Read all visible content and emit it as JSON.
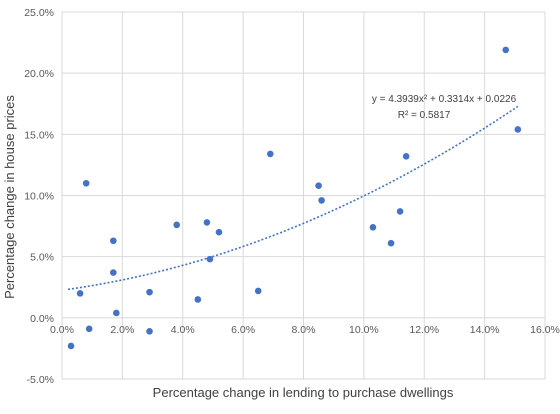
{
  "chart_data": {
    "type": "scatter",
    "xlabel": "Percentage change in lending to purchase dwellings",
    "ylabel": "Percentage change in house prices",
    "xlim": [
      0,
      0.16
    ],
    "ylim": [
      -0.05,
      0.25
    ],
    "x_ticks": [
      0,
      0.02,
      0.04,
      0.06,
      0.08,
      0.1,
      0.12,
      0.14,
      0.16
    ],
    "y_ticks": [
      -0.05,
      0,
      0.05,
      0.1,
      0.15,
      0.2,
      0.25
    ],
    "x_tick_labels": [
      "0.0%",
      "2.0%",
      "4.0%",
      "6.0%",
      "8.0%",
      "10.0%",
      "12.0%",
      "14.0%",
      "16.0%"
    ],
    "y_tick_labels": [
      "-5.0%",
      "0.0%",
      "5.0%",
      "10.0%",
      "15.0%",
      "20.0%",
      "25.0%"
    ],
    "grid": true,
    "marker_color": "#4472c4",
    "trendline_color": "#4472c4",
    "points": [
      {
        "x": 0.003,
        "y": -0.023
      },
      {
        "x": 0.006,
        "y": 0.02
      },
      {
        "x": 0.008,
        "y": 0.11
      },
      {
        "x": 0.009,
        "y": -0.009
      },
      {
        "x": 0.017,
        "y": 0.037
      },
      {
        "x": 0.017,
        "y": 0.063
      },
      {
        "x": 0.018,
        "y": 0.004
      },
      {
        "x": 0.029,
        "y": 0.021
      },
      {
        "x": 0.029,
        "y": -0.011
      },
      {
        "x": 0.038,
        "y": 0.076
      },
      {
        "x": 0.045,
        "y": 0.015
      },
      {
        "x": 0.048,
        "y": 0.078
      },
      {
        "x": 0.049,
        "y": 0.048
      },
      {
        "x": 0.052,
        "y": 0.07
      },
      {
        "x": 0.065,
        "y": 0.022
      },
      {
        "x": 0.069,
        "y": 0.134
      },
      {
        "x": 0.085,
        "y": 0.108
      },
      {
        "x": 0.086,
        "y": 0.096
      },
      {
        "x": 0.103,
        "y": 0.074
      },
      {
        "x": 0.109,
        "y": 0.061
      },
      {
        "x": 0.112,
        "y": 0.087
      },
      {
        "x": 0.114,
        "y": 0.132
      },
      {
        "x": 0.147,
        "y": 0.219
      },
      {
        "x": 0.151,
        "y": 0.154
      }
    ],
    "trendline": {
      "type": "polynomial",
      "coefficients": [
        4.3939,
        0.3314,
        0.0226
      ],
      "x_range": [
        0.002,
        0.151
      ],
      "equation_label": "y = 4.3939x² + 0.3314x + 0.0226",
      "r2_label": "R² = 0.5817"
    }
  }
}
